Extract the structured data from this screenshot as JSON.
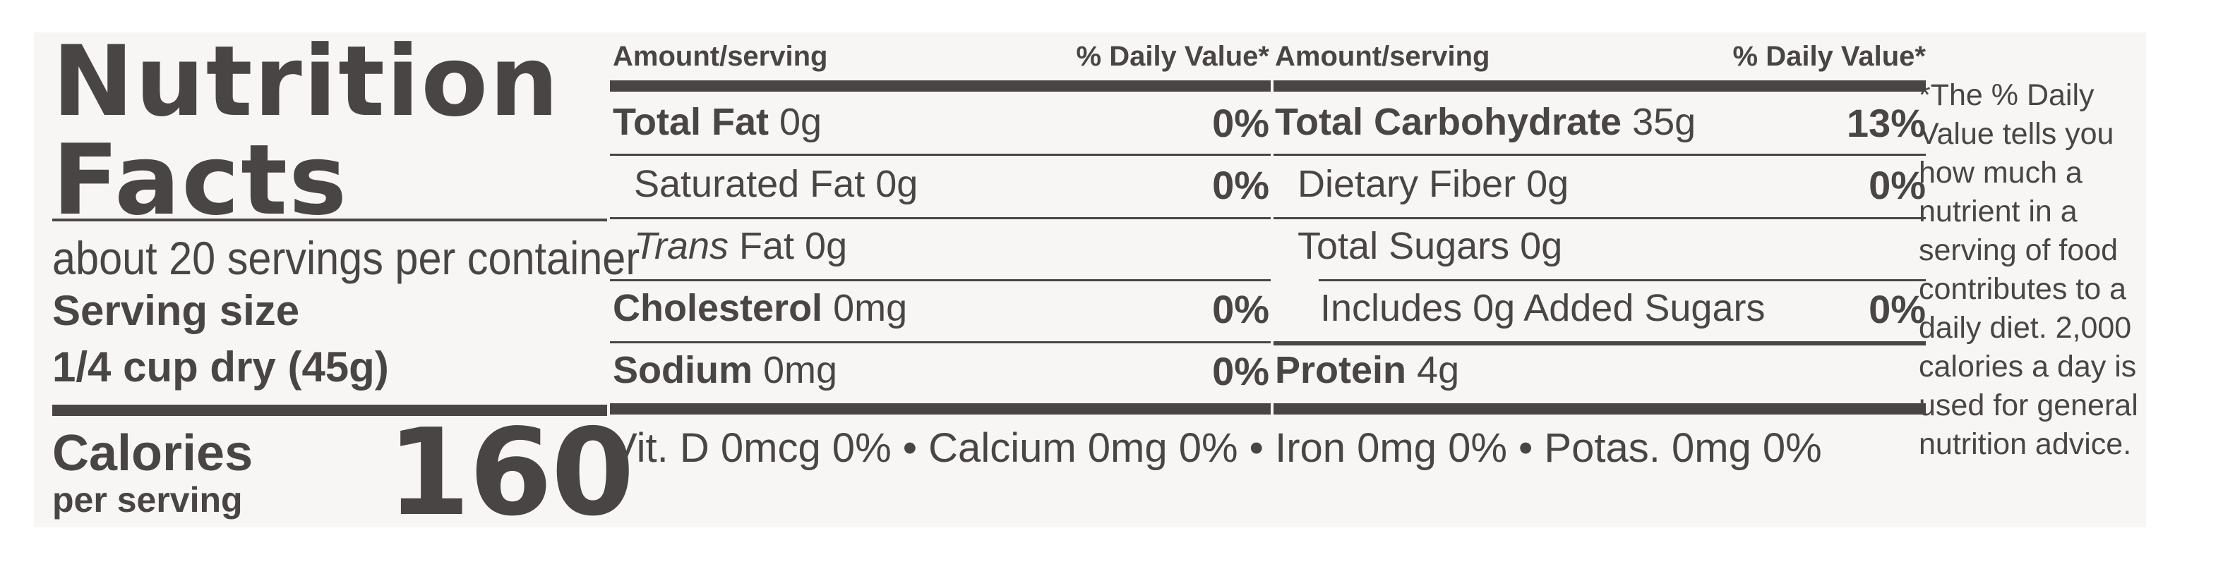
{
  "title": "Nutrition Facts",
  "servings_per_container": "about 20 servings per container",
  "serving_size_label": "Serving size",
  "serving_size_value": "1/4 cup dry (45g)",
  "calories_label": "Calories",
  "calories_sublabel": "per serving",
  "calories_value": "160",
  "header_amount": "Amount/serving",
  "header_dv": "% Daily Value*",
  "left_rows": [
    {
      "name": "Total Fat",
      "amount": " 0g",
      "dv": "0%"
    },
    {
      "name": "Saturated Fat 0g",
      "amount": "",
      "dv": "0%"
    },
    {
      "name": "Trans",
      "amount": " Fat 0g",
      "dv": ""
    },
    {
      "name": "Cholesterol",
      "amount": " 0mg",
      "dv": "0%"
    },
    {
      "name": "Sodium",
      "amount": " 0mg",
      "dv": "0%"
    }
  ],
  "right_rows": [
    {
      "name": "Total Carbohydrate",
      "amount": " 35g",
      "dv": "13%"
    },
    {
      "name": "Dietary Fiber 0g",
      "amount": "",
      "dv": "0%"
    },
    {
      "name": "Total Sugars 0g",
      "amount": "",
      "dv": ""
    },
    {
      "name": "Includes 0g Added Sugars",
      "amount": "",
      "dv": "0%"
    },
    {
      "name": "Protein",
      "amount": " 4g",
      "dv": ""
    }
  ],
  "vitamins": "Vit. D 0mcg 0% • Calcium 0mg 0% • Iron 0mg 0% • Potas. 0mg 0%",
  "footnote": "*The % Daily Value tells you how much a nutrient in a serving of food contributes to a daily diet. 2,000 calories a day is used for general nutrition advice."
}
